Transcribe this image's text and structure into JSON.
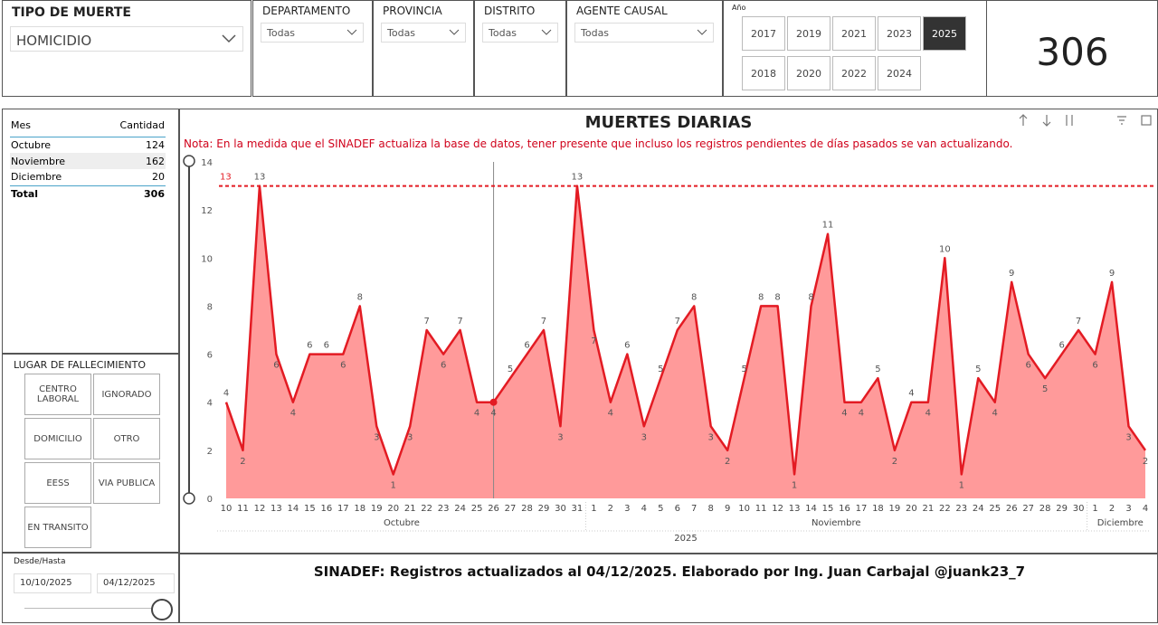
{
  "filters": {
    "tipo_muerte": {
      "label": "TIPO DE MUERTE",
      "value": "HOMICIDIO"
    },
    "departamento": {
      "label": "DEPARTAMENTO",
      "value": "Todas"
    },
    "provincia": {
      "label": "PROVINCIA",
      "value": "Todas"
    },
    "distrito": {
      "label": "DISTRITO",
      "value": "Todas"
    },
    "agente_causal": {
      "label": "AGENTE CAUSAL",
      "value": "Todas"
    },
    "year": {
      "label": "Año",
      "rows": [
        [
          {
            "label": "2017",
            "selected": false
          },
          {
            "label": "2019",
            "selected": false
          },
          {
            "label": "2021",
            "selected": false
          },
          {
            "label": "2023",
            "selected": false
          },
          {
            "label": "2025",
            "selected": true
          }
        ],
        [
          {
            "label": "2018",
            "selected": false
          },
          {
            "label": "2020",
            "selected": false
          },
          {
            "label": "2022",
            "selected": false
          },
          {
            "label": "2024",
            "selected": false
          }
        ]
      ]
    }
  },
  "kpi": {
    "value": 306
  },
  "table": {
    "headers": [
      "Mes",
      "Cantidad"
    ],
    "rows": [
      [
        "Octubre",
        124
      ],
      [
        "Noviembre",
        162
      ],
      [
        "Diciembre",
        20
      ]
    ],
    "total": [
      "Total",
      306
    ]
  },
  "lugar": {
    "title": "LUGAR DE FALLECIMIENTO",
    "buttons": [
      "CENTRO LABORAL",
      "IGNORADO",
      "DOMICILIO",
      "OTRO",
      "EESS",
      "VIA PUBLICA",
      "EN TRANSITO"
    ]
  },
  "date_range": {
    "label": "Desde/Hasta",
    "from": "10/10/2025",
    "to": "04/12/2025"
  },
  "footer": "SINADEF: Registros actualizados al 04/12/2025. Elaborado por Ing. Juan Carbajal @juank23_7",
  "chart_data": {
    "type": "area",
    "title": "MUERTES DIARIAS",
    "note": "Nota: En la medida que el SINADEF actualiza la base de datos, tener presente que incluso los registros pendientes de días pasados se van actualizando.",
    "x_hierarchy": {
      "year": "2025",
      "months": [
        {
          "name": "Octubre",
          "days": [
            10,
            11,
            12,
            13,
            14,
            15,
            16,
            17,
            18,
            19,
            20,
            21,
            22,
            23,
            24,
            25,
            26,
            27,
            28,
            29,
            30,
            31
          ]
        },
        {
          "name": "Noviembre",
          "days": [
            1,
            2,
            3,
            4,
            5,
            6,
            7,
            8,
            9,
            10,
            11,
            12,
            13,
            14,
            15,
            16,
            17,
            18,
            19,
            20,
            21,
            22,
            23,
            24,
            25,
            26,
            27,
            28,
            29,
            30
          ]
        },
        {
          "name": "Diciembre",
          "days": [
            1,
            2,
            3,
            4
          ]
        }
      ]
    },
    "series": [
      {
        "color": "#e31b23",
        "fill": "#ff9a9a",
        "values": [
          4,
          2,
          13,
          6,
          4,
          6,
          6,
          6,
          8,
          3,
          1,
          3,
          7,
          6,
          7,
          4,
          4,
          5,
          6,
          7,
          3,
          13,
          7,
          4,
          6,
          3,
          5,
          7,
          8,
          3,
          2,
          5,
          8,
          8,
          1,
          8,
          11,
          4,
          4,
          5,
          2,
          4,
          4,
          10,
          1,
          5,
          4,
          9,
          6,
          5,
          6,
          7,
          6,
          9,
          3,
          2
        ]
      }
    ],
    "reference_line": 13,
    "ylim": [
      0,
      14
    ],
    "yticks": [
      0,
      2,
      4,
      6,
      8,
      10,
      12,
      14
    ]
  }
}
